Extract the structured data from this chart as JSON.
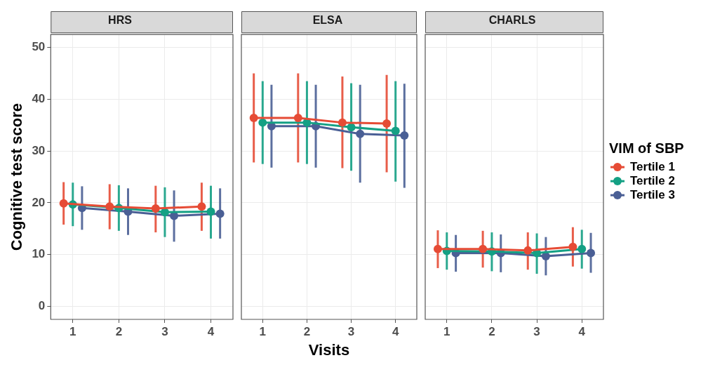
{
  "chart_data": [
    {
      "type": "line",
      "title": "HRS",
      "ylabel": "Cognitive test score",
      "xlim": [
        0.52,
        4.48
      ],
      "xticks": [
        1,
        2,
        3,
        4
      ],
      "ylim": [
        -2.5,
        52.5
      ],
      "yticks": [
        0,
        10,
        20,
        30,
        40,
        50
      ],
      "grid": true,
      "marker": "circle",
      "series": [
        {
          "color": "#e64b35",
          "x": [
            0.8,
            1.8,
            2.8,
            3.8
          ],
          "values": [
            19.9,
            19.3,
            18.9,
            19.3
          ],
          "errors": [
            [
              15.8,
              24.0
            ],
            [
              14.9,
              23.6
            ],
            [
              14.3,
              23.3
            ],
            [
              14.6,
              23.9
            ]
          ]
        },
        {
          "color": "#14a084",
          "x": [
            1,
            2,
            3,
            4
          ],
          "values": [
            19.7,
            19.0,
            18.2,
            18.3
          ],
          "errors": [
            [
              15.5,
              23.9
            ],
            [
              14.6,
              23.4
            ],
            [
              13.4,
              23.0
            ],
            [
              13.1,
              23.3
            ]
          ]
        },
        {
          "color": "#4a5f95",
          "x": [
            1.2,
            2.2,
            3.2,
            4.2
          ],
          "values": [
            19.0,
            18.3,
            17.5,
            17.9
          ],
          "errors": [
            [
              14.8,
              23.2
            ],
            [
              13.8,
              22.8
            ],
            [
              12.5,
              22.4
            ],
            [
              13.1,
              22.8
            ]
          ]
        }
      ]
    },
    {
      "type": "line",
      "title": "ELSA",
      "xlabel": "Visits",
      "xlim": [
        0.52,
        4.48
      ],
      "xticks": [
        1,
        2,
        3,
        4
      ],
      "ylim": [
        -2.5,
        52.5
      ],
      "yticks": [
        0,
        10,
        20,
        30,
        40,
        50
      ],
      "grid": true,
      "marker": "circle",
      "tick_labels": "x",
      "series": [
        {
          "color": "#e64b35",
          "x": [
            0.8,
            1.8,
            2.8,
            3.8
          ],
          "values": [
            36.4,
            36.4,
            35.5,
            35.3
          ],
          "errors": [
            [
              27.8,
              45.0
            ],
            [
              27.8,
              45.0
            ],
            [
              26.7,
              44.4
            ],
            [
              25.9,
              44.7
            ]
          ]
        },
        {
          "color": "#14a084",
          "x": [
            1,
            2,
            3,
            4
          ],
          "values": [
            35.5,
            35.5,
            34.6,
            33.9
          ],
          "errors": [
            [
              27.5,
              43.5
            ],
            [
              27.5,
              43.5
            ],
            [
              26.2,
              43.1
            ],
            [
              24.1,
              43.5
            ]
          ]
        },
        {
          "color": "#4a5f95",
          "x": [
            1.2,
            2.2,
            3.2,
            4.2
          ],
          "values": [
            34.8,
            34.8,
            33.3,
            33.0
          ],
          "errors": [
            [
              26.8,
              42.8
            ],
            [
              26.8,
              42.8
            ],
            [
              23.9,
              42.8
            ],
            [
              22.9,
              43.0
            ]
          ]
        }
      ]
    },
    {
      "type": "line",
      "title": "CHARLS",
      "legend_title": "VIM of SBP",
      "legend": "right",
      "xlim": [
        0.52,
        4.48
      ],
      "xticks": [
        1,
        2,
        3,
        4
      ],
      "ylim": [
        -2.5,
        52.5
      ],
      "yticks": [
        0,
        10,
        20,
        30,
        40,
        50
      ],
      "grid": true,
      "marker": "circle",
      "tick_labels": "x",
      "series": [
        {
          "name": "Tertile 1",
          "color": "#e64b35",
          "x": [
            0.8,
            1.8,
            2.8,
            3.8
          ],
          "values": [
            11.1,
            11.1,
            10.8,
            11.5
          ],
          "errors": [
            [
              7.4,
              14.7
            ],
            [
              7.5,
              14.6
            ],
            [
              7.1,
              14.3
            ],
            [
              7.7,
              15.3
            ]
          ]
        },
        {
          "name": "Tertile 2",
          "color": "#14a084",
          "x": [
            1,
            2,
            3,
            4
          ],
          "values": [
            10.7,
            10.6,
            10.3,
            11.1
          ],
          "errors": [
            [
              7.1,
              14.3
            ],
            [
              6.8,
              14.3
            ],
            [
              6.3,
              14.1
            ],
            [
              7.3,
              14.8
            ]
          ]
        },
        {
          "name": "Tertile 3",
          "color": "#4a5f95",
          "x": [
            1.2,
            2.2,
            3.2,
            4.2
          ],
          "values": [
            10.3,
            10.3,
            9.7,
            10.3
          ],
          "errors": [
            [
              6.7,
              13.8
            ],
            [
              6.6,
              13.9
            ],
            [
              6.0,
              13.4
            ],
            [
              6.5,
              14.2
            ]
          ]
        }
      ]
    }
  ]
}
